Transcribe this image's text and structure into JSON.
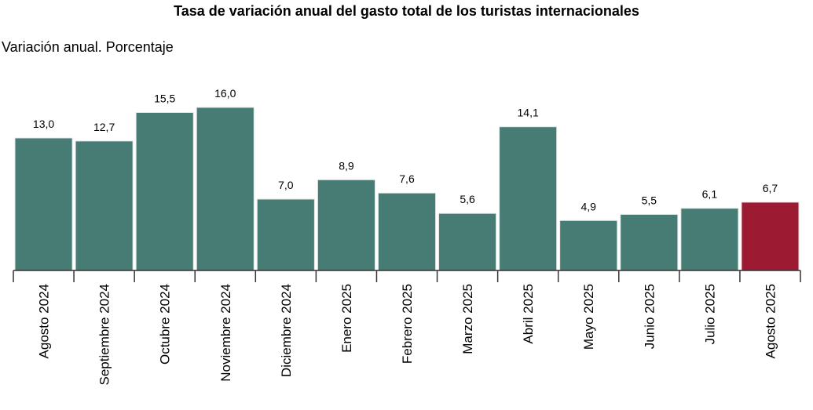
{
  "chart_data": {
    "type": "bar",
    "title": "Tasa de variación anual del gasto total de los turistas internacionales",
    "subtitle": "Variación anual. Porcentaje",
    "xlabel": "",
    "ylabel": "",
    "ylim": [
      0,
      16.0
    ],
    "grid": false,
    "categories": [
      "Agosto 2024",
      "Septiembre 2024",
      "Octubre 2024",
      "Noviembre 2024",
      "Diciembre 2024",
      "Enero 2025",
      "Febrero 2025",
      "Marzo 2025",
      "Abril 2025",
      "Mayo 2025",
      "Junio 2025",
      "Julio 2025",
      "Agosto 2025"
    ],
    "values": [
      13.0,
      12.7,
      15.5,
      16.0,
      7.0,
      8.9,
      7.6,
      5.6,
      14.1,
      4.9,
      5.5,
      6.1,
      6.7
    ],
    "data_labels": [
      "13,0",
      "12,7",
      "15,5",
      "16,0",
      "7,0",
      "8,9",
      "7,6",
      "5,6",
      "14,1",
      "4,9",
      "5,5",
      "6,1",
      "6,7"
    ],
    "colors": {
      "default": "#467C74",
      "highlight": "#9C1A32"
    },
    "highlight_index": 12
  }
}
